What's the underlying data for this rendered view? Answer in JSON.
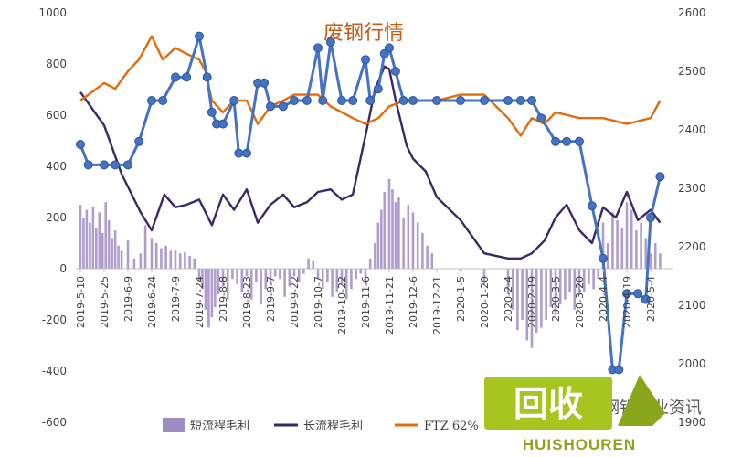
{
  "chart_data": {
    "type": "bar",
    "title": "废钢行情",
    "xlabel": "",
    "ylabel": "",
    "ylim": [
      -600,
      1000
    ],
    "y2lim": [
      1900,
      2600
    ],
    "y_ticks": [
      1000,
      800,
      600,
      400,
      200,
      0,
      -200,
      -400,
      -600
    ],
    "y2_ticks": [
      2600,
      2500,
      2400,
      2300,
      2200,
      2100,
      2000,
      1900
    ],
    "x_ticks": [
      "2019-5-10",
      "2019-5-25",
      "2019-6-9",
      "2019-6-24",
      "2019-7-9",
      "2019-7-24",
      "2019-8-8",
      "2019-8-23",
      "2019-9-7",
      "2019-9-22",
      "2019-10-7",
      "2019-10-22",
      "2019-11-6",
      "2019-11-21",
      "2019-12-6",
      "2019-12-21",
      "2020-1-5",
      "2020-1-20",
      "2020-2-4",
      "2020-2-19",
      "2020-3-5",
      "2020-3-20",
      "2020-4-4",
      "2020-4-19",
      "2020-5-4"
    ],
    "legend_position": "bottom",
    "grid": false,
    "series": [
      {
        "name": "短流程毛利",
        "type": "bar",
        "axis": "left",
        "color": "#a08cc4",
        "x": [
          "2019-5-10",
          "2019-5-12",
          "2019-5-14",
          "2019-5-16",
          "2019-5-18",
          "2019-5-20",
          "2019-5-22",
          "2019-5-24",
          "2019-5-26",
          "2019-5-28",
          "2019-5-30",
          "2019-6-1",
          "2019-6-3",
          "2019-6-5",
          "2019-6-9",
          "2019-6-13",
          "2019-6-17",
          "2019-6-20",
          "2019-6-24",
          "2019-6-27",
          "2019-6-30",
          "2019-7-3",
          "2019-7-6",
          "2019-7-9",
          "2019-7-12",
          "2019-7-15",
          "2019-7-18",
          "2019-7-21",
          "2019-7-24",
          "2019-7-26",
          "2019-7-28",
          "2019-7-30",
          "2019-8-1",
          "2019-8-3",
          "2019-8-5",
          "2019-8-8",
          "2019-8-11",
          "2019-8-14",
          "2019-8-17",
          "2019-8-20",
          "2019-8-23",
          "2019-8-26",
          "2019-8-29",
          "2019-9-1",
          "2019-9-4",
          "2019-9-7",
          "2019-9-10",
          "2019-9-13",
          "2019-9-16",
          "2019-9-19",
          "2019-9-22",
          "2019-9-25",
          "2019-9-28",
          "2019-10-1",
          "2019-10-4",
          "2019-10-7",
          "2019-10-10",
          "2019-10-13",
          "2019-10-16",
          "2019-10-19",
          "2019-10-22",
          "2019-10-25",
          "2019-10-28",
          "2019-10-31",
          "2019-11-3",
          "2019-11-6",
          "2019-11-9",
          "2019-11-12",
          "2019-11-14",
          "2019-11-16",
          "2019-11-18",
          "2019-11-21",
          "2019-11-23",
          "2019-11-25",
          "2019-11-27",
          "2019-11-30",
          "2019-12-3",
          "2019-12-6",
          "2019-12-9",
          "2019-12-12",
          "2019-12-15",
          "2019-12-18",
          "2020-1-5",
          "2020-1-20",
          "2020-2-4",
          "2020-2-7",
          "2020-2-10",
          "2020-2-13",
          "2020-2-16",
          "2020-2-19",
          "2020-2-22",
          "2020-2-25",
          "2020-2-28",
          "2020-3-2",
          "2020-3-5",
          "2020-3-8",
          "2020-3-11",
          "2020-3-14",
          "2020-3-17",
          "2020-3-20",
          "2020-3-23",
          "2020-3-26",
          "2020-3-29",
          "2020-4-1",
          "2020-4-4",
          "2020-4-7",
          "2020-4-10",
          "2020-4-13",
          "2020-4-16",
          "2020-4-19",
          "2020-4-22",
          "2020-4-25",
          "2020-4-28",
          "2020-5-1",
          "2020-5-4",
          "2020-5-7",
          "2020-5-10"
        ],
        "values": [
          250,
          200,
          230,
          180,
          240,
          160,
          220,
          140,
          260,
          190,
          120,
          150,
          90,
          70,
          110,
          40,
          60,
          170,
          120,
          100,
          80,
          90,
          70,
          75,
          60,
          65,
          50,
          40,
          -50,
          -80,
          -160,
          -230,
          -190,
          -150,
          -100,
          -70,
          -120,
          -40,
          -60,
          -90,
          -30,
          -120,
          -50,
          -140,
          -80,
          -60,
          -30,
          -40,
          -110,
          -70,
          -30,
          -50,
          -20,
          40,
          30,
          -40,
          -80,
          -50,
          -110,
          -90,
          -60,
          -120,
          -80,
          -40,
          -20,
          -60,
          40,
          100,
          180,
          230,
          300,
          350,
          310,
          260,
          280,
          200,
          250,
          220,
          180,
          140,
          90,
          60,
          -10,
          -60,
          -100,
          -160,
          -240,
          -200,
          -280,
          -310,
          -250,
          -230,
          -200,
          -150,
          -180,
          -140,
          -120,
          -90,
          -160,
          -100,
          -90,
          -60,
          -80,
          -40,
          180,
          100,
          220,
          190,
          160,
          260,
          230,
          150,
          180,
          120,
          60,
          100,
          60
        ],
        "bar_width_days": 1.5
      },
      {
        "name": "长流程毛利",
        "type": "line",
        "axis": "left",
        "color": "#3b2868",
        "x": [
          "2019-5-10",
          "2019-5-25",
          "2019-6-5",
          "2019-6-17",
          "2019-6-24",
          "2019-7-2",
          "2019-7-9",
          "2019-7-16",
          "2019-7-24",
          "2019-8-1",
          "2019-8-8",
          "2019-8-15",
          "2019-8-23",
          "2019-8-30",
          "2019-9-7",
          "2019-9-15",
          "2019-9-22",
          "2019-9-30",
          "2019-10-7",
          "2019-10-15",
          "2019-10-22",
          "2019-10-29",
          "2019-11-6",
          "2019-11-12",
          "2019-11-18",
          "2019-11-21",
          "2019-11-25",
          "2019-12-2",
          "2019-12-6",
          "2019-12-14",
          "2019-12-21",
          "2020-1-5",
          "2020-1-20",
          "2020-2-4",
          "2020-2-12",
          "2020-2-19",
          "2020-2-27",
          "2020-3-5",
          "2020-3-12",
          "2020-3-20",
          "2020-3-28",
          "2020-4-4",
          "2020-4-12",
          "2020-4-19",
          "2020-4-26",
          "2020-5-4",
          "2020-5-10"
        ],
        "values": [
          690,
          560,
          370,
          220,
          150,
          290,
          240,
          250,
          270,
          170,
          290,
          230,
          310,
          180,
          250,
          290,
          240,
          260,
          300,
          310,
          270,
          290,
          520,
          700,
          790,
          780,
          660,
          480,
          430,
          380,
          280,
          190,
          60,
          40,
          40,
          60,
          110,
          200,
          250,
          150,
          100,
          240,
          200,
          300,
          190,
          230,
          180
        ]
      },
      {
        "name": "FTZ 62%",
        "type": "line",
        "axis": "right",
        "color": "#e36c0a",
        "x": [
          "2019-5-10",
          "2019-5-15",
          "2019-5-25",
          "2019-6-1",
          "2019-6-9",
          "2019-6-16",
          "2019-6-24",
          "2019-7-1",
          "2019-7-9",
          "2019-7-16",
          "2019-7-24",
          "2019-7-28",
          "2019-8-1",
          "2019-8-8",
          "2019-8-15",
          "2019-8-23",
          "2019-8-30",
          "2019-9-7",
          "2019-9-15",
          "2019-9-22",
          "2019-9-30",
          "2019-10-7",
          "2019-10-15",
          "2019-10-22",
          "2019-10-29",
          "2019-11-6",
          "2019-11-14",
          "2019-11-21",
          "2019-12-1",
          "2019-12-10",
          "2019-12-21",
          "2020-1-5",
          "2020-1-20",
          "2020-2-4",
          "2020-2-12",
          "2020-2-19",
          "2020-2-27",
          "2020-3-5",
          "2020-3-20",
          "2020-4-4",
          "2020-4-19",
          "2020-5-4",
          "2020-5-10"
        ],
        "values": [
          2450,
          2460,
          2480,
          2470,
          2500,
          2520,
          2560,
          2520,
          2540,
          2530,
          2520,
          2500,
          2450,
          2430,
          2450,
          2450,
          2410,
          2440,
          2450,
          2460,
          2460,
          2460,
          2440,
          2430,
          2420,
          2410,
          2420,
          2440,
          2450,
          2450,
          2450,
          2460,
          2460,
          2420,
          2390,
          2420,
          2410,
          2430,
          2420,
          2420,
          2410,
          2420,
          2450
        ]
      },
      {
        "name": "",
        "type": "line",
        "axis": "right",
        "color": "#4472c4",
        "marker": "circle",
        "x": [
          "2019-5-10",
          "2019-5-15",
          "2019-5-25",
          "2019-6-1",
          "2019-6-9",
          "2019-6-16",
          "2019-6-24",
          "2019-7-1",
          "2019-7-9",
          "2019-7-16",
          "2019-7-24",
          "2019-7-29",
          "2019-8-1",
          "2019-8-4",
          "2019-8-8",
          "2019-8-15",
          "2019-8-18",
          "2019-8-23",
          "2019-8-30",
          "2019-9-3",
          "2019-9-7",
          "2019-9-15",
          "2019-9-22",
          "2019-9-30",
          "2019-10-7",
          "2019-10-10",
          "2019-10-15",
          "2019-10-22",
          "2019-10-29",
          "2019-11-6",
          "2019-11-9",
          "2019-11-14",
          "2019-11-18",
          "2019-11-21",
          "2019-11-25",
          "2019-11-30",
          "2019-12-6",
          "2019-12-21",
          "2020-1-5",
          "2020-1-20",
          "2020-2-4",
          "2020-2-12",
          "2020-2-19",
          "2020-2-25",
          "2020-3-5",
          "2020-3-12",
          "2020-3-20",
          "2020-3-28",
          "2020-4-4",
          "2020-4-10",
          "2020-4-14",
          "2020-4-19",
          "2020-4-26",
          "2020-5-1",
          "2020-5-4",
          "2020-5-10"
        ],
        "values": [
          2375,
          2340,
          2340,
          2340,
          2340,
          2380,
          2450,
          2450,
          2490,
          2490,
          2560,
          2490,
          2430,
          2410,
          2410,
          2450,
          2360,
          2360,
          2480,
          2480,
          2440,
          2440,
          2450,
          2450,
          2540,
          2450,
          2550,
          2450,
          2450,
          2520,
          2450,
          2470,
          2530,
          2540,
          2500,
          2450,
          2450,
          2450,
          2450,
          2450,
          2450,
          2450,
          2450,
          2420,
          2380,
          2380,
          2380,
          2270,
          2180,
          1990,
          1990,
          2120,
          2120,
          2110,
          2250,
          2320
        ]
      }
    ]
  },
  "legend": [
    {
      "label": "短流程毛利",
      "swatch": "bar",
      "color": "#a08cc4"
    },
    {
      "label": "长流程毛利",
      "swatch": "line",
      "color": "#3b2868"
    },
    {
      "label": "FTZ 62%",
      "swatch": "line",
      "color": "#e36c0a"
    },
    {
      "label": "",
      "swatch": "marker-line",
      "color": "#4472c4"
    }
  ],
  "watermark": {
    "logo_text": "回收",
    "brand_text": "HUISHOUREN",
    "partial_text": "钢铁行业资讯"
  }
}
